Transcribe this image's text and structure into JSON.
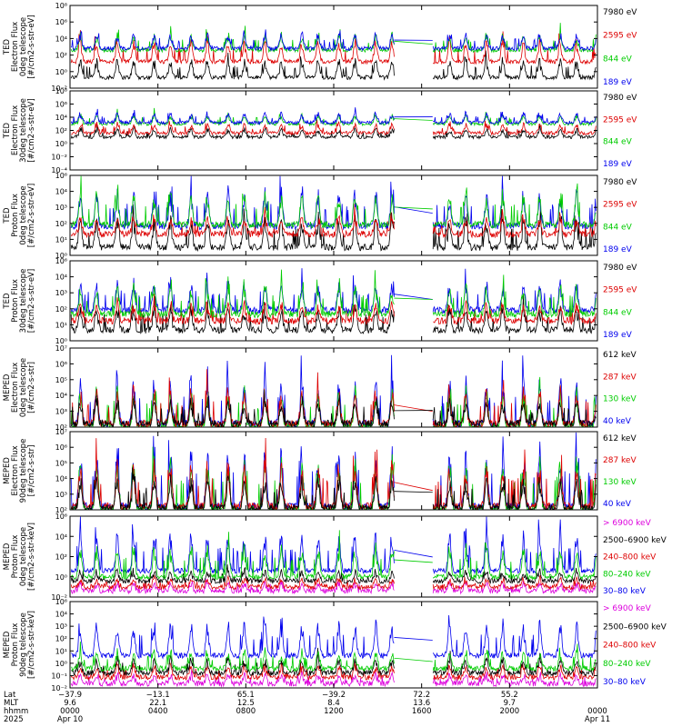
{
  "chart_data": [
    {
      "type": "line",
      "ylabel_lines": [
        "TED",
        "Electron Flux",
        "0deg telescope",
        "[#/cm2-s-str-eV]"
      ],
      "y_ticks": [
        "10⁸",
        "10⁶",
        "10⁴",
        "10²",
        "10⁰",
        "10⁻²"
      ],
      "log_range": [
        -2,
        8
      ],
      "channel_labels": [
        "7980 eV",
        "2595 eV",
        "844 eV",
        "189 eV"
      ],
      "channel_colors": [
        "#000000",
        "#dd0000",
        "#00cc00",
        "#0000ee"
      ],
      "series": [
        {
          "name": "7980 eV",
          "base": -0.7,
          "amp": 2.0
        },
        {
          "name": "2595 eV",
          "base": 1.2,
          "amp": 2.4
        },
        {
          "name": "844 eV",
          "base": 2.6,
          "amp": 1.8
        },
        {
          "name": "189 eV",
          "base": 2.8,
          "amp": 1.7
        }
      ]
    },
    {
      "type": "line",
      "ylabel_lines": [
        "TED",
        "Electron Flux",
        "30deg telescope",
        "[#/cm2-s-str-eV]"
      ],
      "y_ticks": [
        "10⁸",
        "10⁶",
        "10⁴",
        "10²",
        "10⁰",
        "10⁻²",
        "10⁻⁴"
      ],
      "log_range": [
        -4,
        8
      ],
      "channel_labels": [
        "7980 eV",
        "2595 eV",
        "844 eV",
        "189 eV"
      ],
      "channel_colors": [
        "#000000",
        "#dd0000",
        "#00cc00",
        "#0000ee"
      ],
      "series": [
        {
          "name": "7980 eV",
          "base": 1.0,
          "amp": 1.2
        },
        {
          "name": "2595 eV",
          "base": 1.6,
          "amp": 1.3
        },
        {
          "name": "844 eV",
          "base": 3.0,
          "amp": 1.3
        },
        {
          "name": "189 eV",
          "base": 3.2,
          "amp": 1.4
        }
      ]
    },
    {
      "type": "line",
      "ylabel_lines": [
        "TED",
        "Proton Flux",
        "0deg telescope",
        "[#/cm2-s-str-eV]"
      ],
      "y_ticks": [
        "10⁶",
        "10⁴",
        "10³",
        "10²",
        "10¹",
        "10⁰"
      ],
      "log_range": [
        0,
        6
      ],
      "channel_labels": [
        "7980 eV",
        "2595 eV",
        "844 eV",
        "189 eV"
      ],
      "channel_colors": [
        "#000000",
        "#dd0000",
        "#00cc00",
        "#0000ee"
      ],
      "series": [
        {
          "name": "7980 eV",
          "base": 0.6,
          "amp": 2.0
        },
        {
          "name": "2595 eV",
          "base": 1.6,
          "amp": 1.2
        },
        {
          "name": "189 eV",
          "base": 2.2,
          "amp": 2.4
        },
        {
          "name": "844 eV",
          "base": 2.3,
          "amp": 2.2
        }
      ]
    },
    {
      "type": "line",
      "ylabel_lines": [
        "TED",
        "Proton Flux",
        "30deg telescope",
        "[#/cm2-s-str-eV]"
      ],
      "y_ticks": [
        "10⁶",
        "10⁴",
        "10³",
        "10²",
        "10¹",
        "10⁰"
      ],
      "log_range": [
        0,
        6
      ],
      "channel_labels": [
        "7980 eV",
        "2595 eV",
        "844 eV",
        "189 eV"
      ],
      "channel_colors": [
        "#000000",
        "#dd0000",
        "#00cc00",
        "#0000ee"
      ],
      "series": [
        {
          "name": "7980 eV",
          "base": 0.8,
          "amp": 1.6
        },
        {
          "name": "2595 eV",
          "base": 1.5,
          "amp": 1.2
        },
        {
          "name": "189 eV",
          "base": 2.3,
          "amp": 2.0
        },
        {
          "name": "844 eV",
          "base": 2.0,
          "amp": 2.0
        }
      ]
    },
    {
      "type": "line",
      "ylabel_lines": [
        "MEPED",
        "Electron Flux",
        "0deg telescope",
        "[#/cm2-s-str]"
      ],
      "y_ticks": [
        "10⁷",
        "10⁶",
        "10⁵",
        "10⁴",
        "10³",
        "10²"
      ],
      "log_range": [
        2,
        7
      ],
      "channel_labels": [
        "612 keV",
        "287 keV",
        "130 keV",
        "40 keV"
      ],
      "channel_colors": [
        "#000000",
        "#dd0000",
        "#00cc00",
        "#0000ee"
      ],
      "series": [
        {
          "name": "40 keV",
          "base": 2.2,
          "amp": 2.6
        },
        {
          "name": "130 keV",
          "base": 2.0,
          "amp": 2.2
        },
        {
          "name": "287 keV",
          "base": 2.2,
          "amp": 2.0
        },
        {
          "name": "612 keV",
          "base": 2.2,
          "amp": 1.4
        }
      ]
    },
    {
      "type": "line",
      "ylabel_lines": [
        "MEPED",
        "Electron Flux",
        "90deg telescope",
        "[#/cm2-s-str]"
      ],
      "y_ticks": [
        "10⁷",
        "10⁶",
        "10⁵",
        "10⁴",
        "10³",
        "10²"
      ],
      "log_range": [
        2,
        7
      ],
      "channel_labels": [
        "612 keV",
        "287 keV",
        "130 keV",
        "40 keV"
      ],
      "channel_colors": [
        "#000000",
        "#dd0000",
        "#00cc00",
        "#0000ee"
      ],
      "series": [
        {
          "name": "40 keV",
          "base": 2.2,
          "amp": 3.4
        },
        {
          "name": "130 keV",
          "base": 2.0,
          "amp": 3.0
        },
        {
          "name": "287 keV",
          "base": 2.2,
          "amp": 2.6
        },
        {
          "name": "612 keV",
          "base": 2.1,
          "amp": 1.8
        }
      ]
    },
    {
      "type": "line",
      "ylabel_lines": [
        "MEPED",
        "Proton Flux",
        "0deg telescope",
        "[#/cm2-s-str-keV]"
      ],
      "y_ticks": [
        "10⁶",
        "10⁴",
        "10²",
        "10⁰",
        "10⁻²"
      ],
      "log_range": [
        -2,
        6
      ],
      "channel_labels": [
        "> 6900 keV",
        "2500–6900 keV",
        "240–800 keV",
        "80–240 keV",
        "30–80 keV"
      ],
      "channel_colors": [
        "#dd00dd",
        "#000000",
        "#dd0000",
        "#00cc00",
        "#0000ee"
      ],
      "series": [
        {
          "name": "> 6900 keV",
          "base": -1.4,
          "amp": 0.8
        },
        {
          "name": "240–800 keV",
          "base": -1.0,
          "amp": 0.8
        },
        {
          "name": "2500–6900 keV",
          "base": -0.4,
          "amp": 0.9
        },
        {
          "name": "30–80 keV",
          "base": 0.6,
          "amp": 3.4
        },
        {
          "name": "80–240 keV",
          "base": 0.0,
          "amp": 2.8
        }
      ]
    },
    {
      "type": "line",
      "ylabel_lines": [
        "MEPED",
        "Proton Flux",
        "90deg telescope",
        "[#/cm2-s-str-keV]"
      ],
      "y_ticks": [
        "10⁶",
        "10⁴",
        "10³",
        "10²",
        "10¹",
        "10⁰",
        "10⁻¹",
        "10⁻²"
      ],
      "log_range": [
        -2,
        6
      ],
      "channel_labels": [
        "> 6900 keV",
        "2500–6900 keV",
        "240–800 keV",
        "80–240 keV",
        "30–80 keV"
      ],
      "channel_colors": [
        "#dd00dd",
        "#000000",
        "#dd0000",
        "#00cc00",
        "#0000ee"
      ],
      "series": [
        {
          "name": "> 6900 keV",
          "base": -1.6,
          "amp": 0.8
        },
        {
          "name": "240–800 keV",
          "base": -1.0,
          "amp": 1.0
        },
        {
          "name": "2500–6900 keV",
          "base": -0.6,
          "amp": 1.2
        },
        {
          "name": "80–240 keV",
          "base": -0.2,
          "amp": 1.6
        },
        {
          "name": "30–80 keV",
          "base": 1.0,
          "amp": 2.8
        }
      ]
    }
  ],
  "x_axis": {
    "row_labels": [
      "Lat",
      "MLT",
      "hhmm",
      "2025"
    ],
    "ticks": [
      {
        "hours": 0,
        "lat": "−37.9",
        "mlt": "9.6",
        "hhmm": "0000",
        "date": "Apr 10"
      },
      {
        "hours": 4,
        "lat": "−13.1",
        "mlt": "22.1",
        "hhmm": "0400",
        "date": ""
      },
      {
        "hours": 8,
        "lat": "65.1",
        "mlt": "12.5",
        "hhmm": "0800",
        "date": ""
      },
      {
        "hours": 12,
        "lat": "−39.2",
        "mlt": "8.4",
        "hhmm": "1200",
        "date": ""
      },
      {
        "hours": 16,
        "lat": "72.2",
        "mlt": "13.6",
        "hhmm": "1600",
        "date": ""
      },
      {
        "hours": 20,
        "lat": "55.2",
        "mlt": "9.7",
        "hhmm": "2000",
        "date": ""
      },
      {
        "hours": 24,
        "lat": "",
        "mlt": "",
        "hhmm": "0000",
        "date": "Apr 11"
      }
    ],
    "data_gap_hours": [
      14.75,
      16.5
    ]
  }
}
